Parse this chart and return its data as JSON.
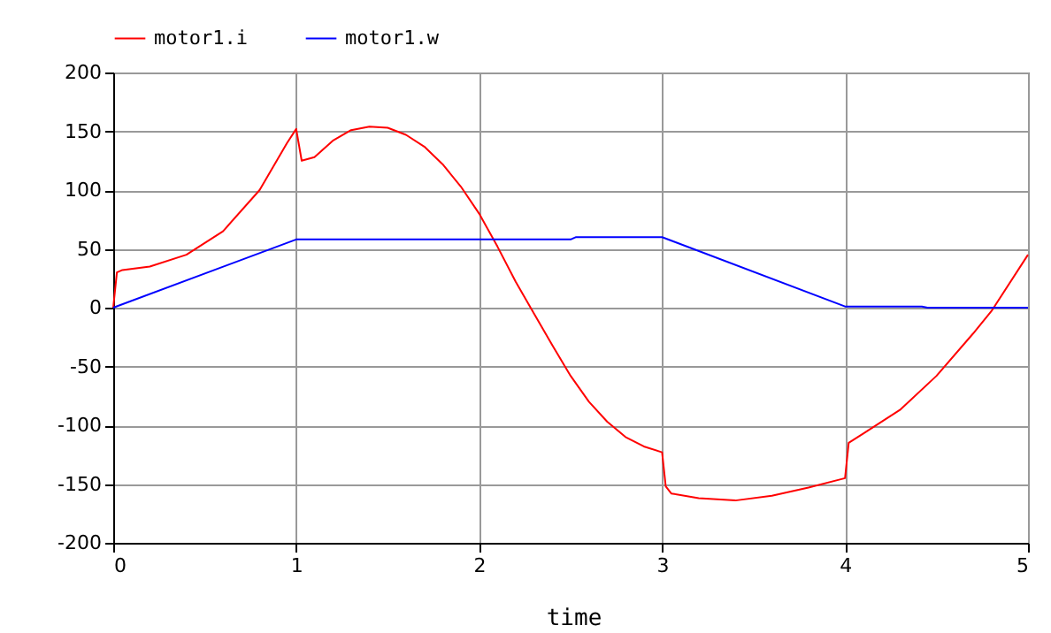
{
  "chart_data": {
    "type": "line",
    "xlabel": "time",
    "xlim": [
      0,
      5
    ],
    "xticks": [
      0,
      1,
      2,
      3,
      4,
      5
    ],
    "ylim": [
      -200,
      200
    ],
    "yticks": [
      -200,
      -150,
      -100,
      -50,
      0,
      50,
      100,
      150,
      200
    ],
    "grid": true,
    "legend": "top left",
    "line_style": "solid",
    "marker": "none",
    "series": [
      {
        "name": "motor1.i",
        "color": "#ff0000",
        "x": [
          0,
          0.02,
          0.05,
          0.2,
          0.4,
          0.6,
          0.8,
          0.95,
          1.0,
          1.03,
          1.1,
          1.2,
          1.3,
          1.4,
          1.5,
          1.6,
          1.7,
          1.8,
          1.9,
          2.0,
          2.1,
          2.2,
          2.3,
          2.4,
          2.5,
          2.6,
          2.7,
          2.8,
          2.9,
          3.0,
          3.02,
          3.05,
          3.2,
          3.4,
          3.6,
          3.8,
          4.0,
          4.02,
          4.1,
          4.3,
          4.5,
          4.7,
          4.8,
          5.0
        ],
        "values": [
          0,
          30,
          32,
          35,
          45,
          65,
          100,
          140,
          152,
          125,
          128,
          142,
          151,
          154,
          153,
          147,
          137,
          122,
          103,
          80,
          52,
          22,
          -5,
          -32,
          -58,
          -80,
          -97,
          -110,
          -118,
          -123,
          -152,
          -158,
          -162,
          -164,
          -160,
          -153,
          -145,
          -115,
          -107,
          -87,
          -58,
          -22,
          -3,
          45
        ]
      },
      {
        "name": "motor1.w",
        "color": "#0000ff",
        "x": [
          0,
          1.0,
          2.5,
          2.53,
          3.0,
          4.0,
          4.42,
          4.45,
          5.0
        ],
        "values": [
          0,
          58,
          58,
          60,
          60,
          1,
          1,
          0,
          0
        ]
      }
    ]
  }
}
